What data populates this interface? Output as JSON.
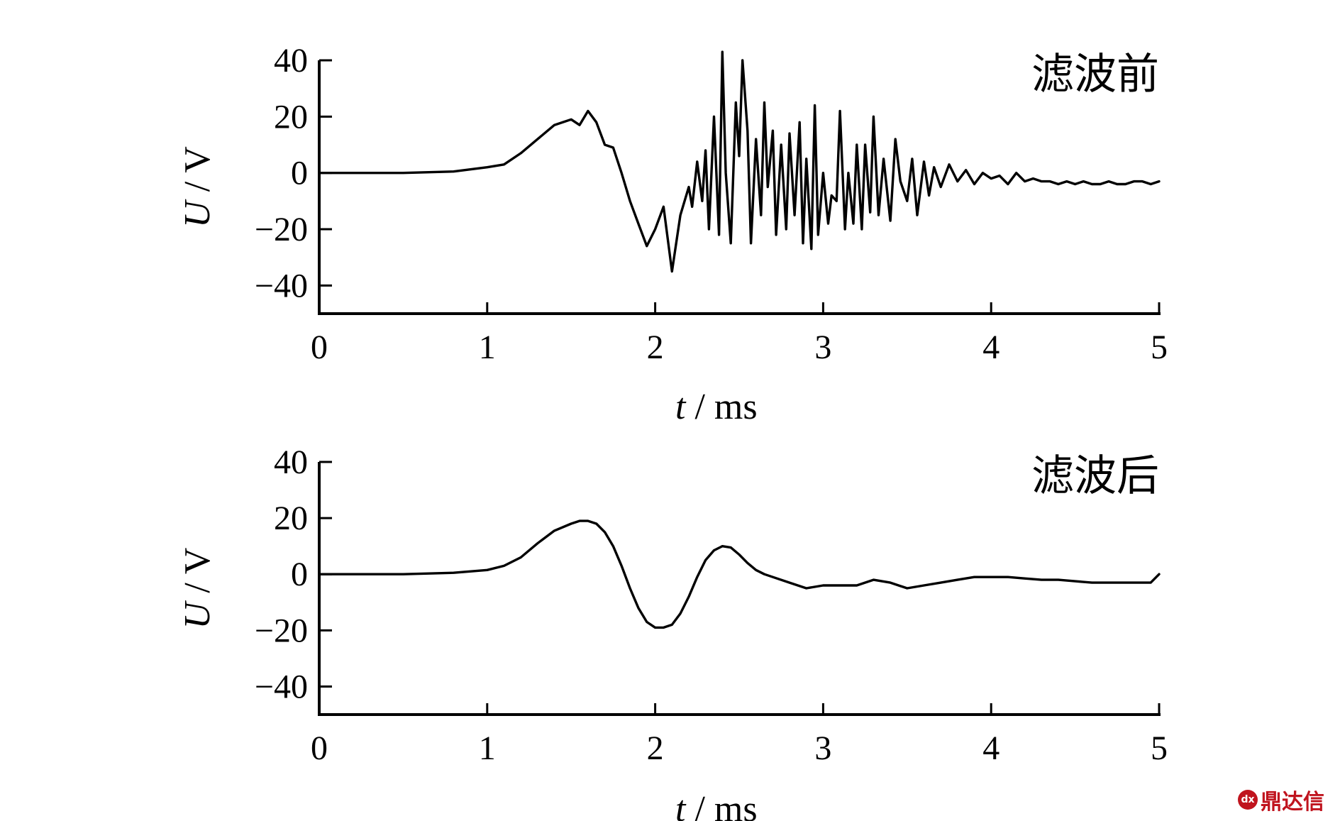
{
  "chart_data": [
    {
      "type": "line",
      "title": "",
      "panel_label": "滤波前",
      "xlabel_var": "t",
      "xlabel_unit": " / ms",
      "ylabel_var": "U",
      "ylabel_unit": " / V",
      "xlim": [
        0,
        5
      ],
      "ylim": [
        -50,
        40
      ],
      "xticks": [
        0,
        1,
        2,
        3,
        4,
        5
      ],
      "yticks": [
        -40,
        -20,
        0,
        20,
        40
      ],
      "ytick_labels": [
        "−40",
        "−20",
        "0",
        "20",
        "40"
      ],
      "grid": false,
      "series": [
        {
          "x": [
            0,
            0.5,
            0.8,
            1.0,
            1.1,
            1.2,
            1.3,
            1.4,
            1.45,
            1.5,
            1.55,
            1.6,
            1.65,
            1.7,
            1.75,
            1.8,
            1.85,
            1.9,
            1.95,
            2.0,
            2.05,
            2.1,
            2.15,
            2.2,
            2.22,
            2.25,
            2.28,
            2.3,
            2.32,
            2.35,
            2.38,
            2.4,
            2.42,
            2.45,
            2.48,
            2.5,
            2.52,
            2.55,
            2.57,
            2.6,
            2.63,
            2.65,
            2.67,
            2.7,
            2.72,
            2.75,
            2.78,
            2.8,
            2.83,
            2.86,
            2.88,
            2.9,
            2.93,
            2.95,
            2.97,
            3.0,
            3.03,
            3.05,
            3.08,
            3.1,
            3.13,
            3.15,
            3.18,
            3.2,
            3.23,
            3.25,
            3.28,
            3.3,
            3.33,
            3.36,
            3.4,
            3.43,
            3.46,
            3.5,
            3.53,
            3.56,
            3.6,
            3.63,
            3.66,
            3.7,
            3.75,
            3.8,
            3.85,
            3.9,
            3.95,
            4.0,
            4.05,
            4.1,
            4.15,
            4.2,
            4.25,
            4.3,
            4.35,
            4.4,
            4.45,
            4.5,
            4.55,
            4.6,
            4.65,
            4.7,
            4.75,
            4.8,
            4.85,
            4.9,
            4.95,
            5.0
          ],
          "y": [
            0,
            0,
            0.5,
            2,
            3,
            7,
            12,
            17,
            18,
            19,
            17,
            22,
            18,
            10,
            9,
            0,
            -10,
            -18,
            -26,
            -20,
            -12,
            -35,
            -15,
            -5,
            -12,
            4,
            -10,
            8,
            -20,
            20,
            -22,
            43,
            0,
            -25,
            25,
            6,
            40,
            15,
            -25,
            12,
            -15,
            25,
            -5,
            15,
            -22,
            10,
            -20,
            14,
            -15,
            18,
            -25,
            5,
            -27,
            24,
            -22,
            0,
            -18,
            -8,
            -10,
            22,
            -20,
            0,
            -18,
            10,
            -20,
            10,
            -14,
            20,
            -15,
            5,
            -17,
            12,
            -3,
            -10,
            5,
            -15,
            4,
            -8,
            2,
            -5,
            3,
            -3,
            1,
            -4,
            0,
            -2,
            -1,
            -4,
            0,
            -3,
            -2,
            -3,
            -3,
            -4,
            -3,
            -4,
            -3,
            -4,
            -4,
            -3,
            -4,
            -4,
            -3,
            -3,
            -4,
            -3
          ]
        }
      ]
    },
    {
      "type": "line",
      "title": "",
      "panel_label": "滤波后",
      "xlabel_var": "t",
      "xlabel_unit": " / ms",
      "ylabel_var": "U",
      "ylabel_unit": " / V",
      "xlim": [
        0,
        5
      ],
      "ylim": [
        -50,
        40
      ],
      "xticks": [
        0,
        1,
        2,
        3,
        4,
        5
      ],
      "yticks": [
        -40,
        -20,
        0,
        20,
        40
      ],
      "ytick_labels": [
        "−40",
        "−20",
        "0",
        "20",
        "40"
      ],
      "grid": false,
      "series": [
        {
          "x": [
            0,
            0.5,
            0.8,
            1.0,
            1.1,
            1.2,
            1.3,
            1.4,
            1.5,
            1.55,
            1.6,
            1.65,
            1.7,
            1.75,
            1.8,
            1.85,
            1.9,
            1.95,
            2.0,
            2.05,
            2.1,
            2.15,
            2.2,
            2.25,
            2.3,
            2.35,
            2.4,
            2.45,
            2.5,
            2.55,
            2.6,
            2.65,
            2.7,
            2.8,
            2.9,
            3.0,
            3.1,
            3.2,
            3.3,
            3.4,
            3.5,
            3.6,
            3.7,
            3.8,
            3.9,
            4.0,
            4.1,
            4.2,
            4.3,
            4.4,
            4.5,
            4.6,
            4.7,
            4.8,
            4.9,
            4.95,
            5.0
          ],
          "y": [
            0,
            0,
            0.5,
            1.5,
            3,
            6,
            11,
            15.5,
            18,
            19,
            19,
            18,
            15,
            10,
            3,
            -5,
            -12,
            -17,
            -19,
            -19,
            -18,
            -14,
            -8,
            -1,
            5,
            8.5,
            10,
            9.5,
            7,
            4,
            1.5,
            0,
            -1,
            -3,
            -5,
            -4,
            -4,
            -4,
            -2,
            -3,
            -5,
            -4,
            -3,
            -2,
            -1,
            -1,
            -1,
            -1.5,
            -2,
            -2,
            -2.5,
            -3,
            -3,
            -3,
            -3,
            -3,
            0
          ]
        }
      ]
    }
  ],
  "watermark": {
    "text": "鼎达信"
  }
}
